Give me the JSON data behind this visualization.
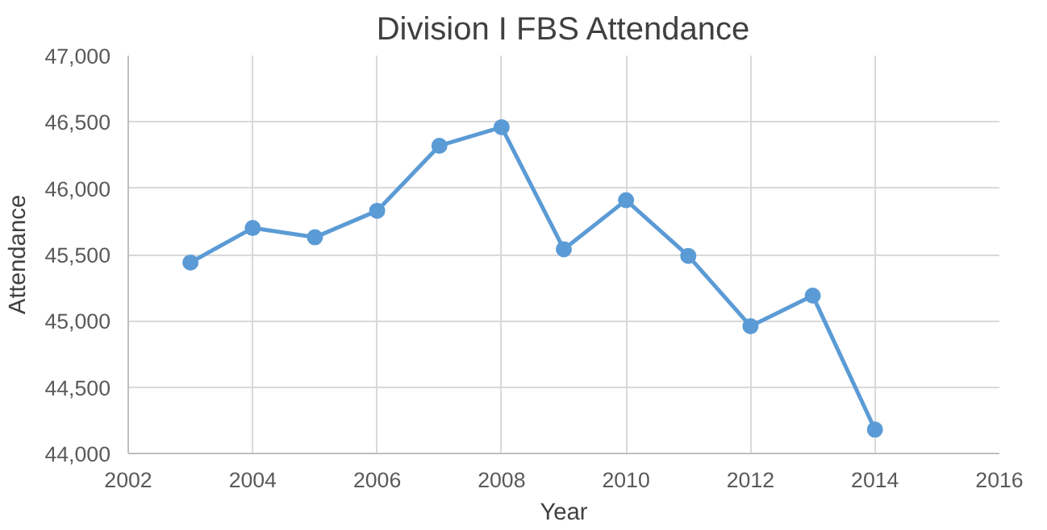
{
  "chart_data": {
    "type": "line",
    "title": "Division I FBS Attendance",
    "xlabel": "Year",
    "ylabel": "Attendance",
    "x": [
      2003,
      2004,
      2005,
      2006,
      2007,
      2008,
      2009,
      2010,
      2011,
      2012,
      2013,
      2014
    ],
    "series": [
      {
        "color": "#5b9bd5",
        "values": [
          45440,
          45700,
          45630,
          45830,
          46320,
          46460,
          45540,
          45910,
          45490,
          44960,
          45190,
          44180
        ]
      }
    ],
    "xlim": [
      2002,
      2016
    ],
    "xticks": [
      2002,
      2004,
      2006,
      2008,
      2010,
      2012,
      2014,
      2016
    ],
    "ylim": [
      44000,
      47000
    ],
    "yticks": [
      {
        "value": 44000,
        "label": "44,000"
      },
      {
        "value": 44500,
        "label": "44,500"
      },
      {
        "value": 45000,
        "label": "45,000"
      },
      {
        "value": 45500,
        "label": "45,500"
      },
      {
        "value": 46000,
        "label": "46,000"
      },
      {
        "value": 46500,
        "label": "46,500"
      },
      {
        "value": 47000,
        "label": "47,000"
      }
    ],
    "grid": true,
    "marker": "circle",
    "line_style": "solid"
  }
}
